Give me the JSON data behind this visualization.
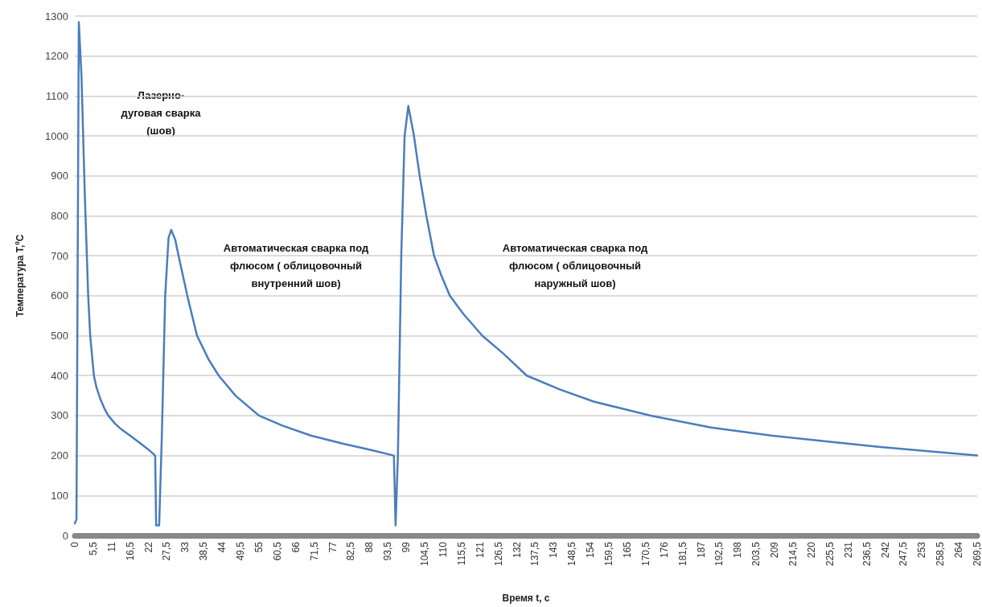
{
  "chart_data": {
    "type": "line",
    "xlabel": "Время t, с",
    "ylabel": "Температура Т,ºС",
    "series": [
      {
        "color": "#4a7ebb",
        "x": [
          0,
          0.5,
          1.2,
          2,
          3,
          4,
          4.6,
          5.7,
          6.5,
          7.7,
          9,
          10,
          12,
          14,
          17.3,
          20,
          22,
          24,
          24.3,
          25.2,
          26,
          27,
          28,
          28.8,
          30,
          31,
          32.3,
          33.6,
          36.5,
          40,
          43,
          48,
          55,
          62,
          70.5,
          80,
          88,
          95.3,
          95.8,
          96.5,
          97.5,
          98.5,
          99.6,
          101.3,
          103,
          105,
          107.3,
          109.5,
          112,
          116,
          121.7,
          128,
          135,
          145,
          155,
          172,
          190,
          208,
          225,
          240,
          255,
          269.5
        ],
        "values": [
          30,
          40,
          1285,
          1150,
          850,
          600,
          500,
          400,
          370,
          340,
          315,
          300,
          280,
          265,
          245,
          228,
          215,
          200,
          25,
          25,
          250,
          600,
          745,
          765,
          740,
          700,
          650,
          600,
          500,
          440,
          400,
          350,
          300,
          275,
          250,
          230,
          215,
          200,
          25,
          200,
          700,
          1000,
          1075,
          1000,
          900,
          800,
          700,
          650,
          600,
          555,
          500,
          455,
          400,
          365,
          335,
          300,
          270,
          250,
          235,
          222,
          211,
          200
        ]
      }
    ],
    "xlim": [
      0,
      269.5
    ],
    "xticks": [
      0,
      {
        "value": 5.5,
        "label": "5,5"
      },
      11,
      {
        "value": 16.5,
        "label": "16,5"
      },
      22,
      {
        "value": 27.5,
        "label": "27,5"
      },
      33,
      {
        "value": 38.5,
        "label": "38,5"
      },
      44,
      {
        "value": 49.5,
        "label": "49,5"
      },
      55,
      {
        "value": 60.5,
        "label": "60,5"
      },
      66,
      {
        "value": 71.5,
        "label": "71,5"
      },
      77,
      {
        "value": 82.5,
        "label": "82,5"
      },
      88,
      {
        "value": 93.5,
        "label": "93,5"
      },
      99,
      {
        "value": 104.5,
        "label": "104,5"
      },
      110,
      {
        "value": 115.5,
        "label": "115,5"
      },
      121,
      {
        "value": 126.5,
        "label": "126,5"
      },
      132,
      {
        "value": 137.5,
        "label": "137,5"
      },
      143,
      {
        "value": 148.5,
        "label": "148,5"
      },
      154,
      {
        "value": 159.5,
        "label": "159,5"
      },
      165,
      {
        "value": 170.5,
        "label": "170,5"
      },
      176,
      {
        "value": 181.5,
        "label": "181,5"
      },
      187,
      {
        "value": 192.5,
        "label": "192,5"
      },
      198,
      {
        "value": 203.5,
        "label": "203,5"
      },
      209,
      {
        "value": 214.5,
        "label": "214,5"
      },
      220,
      {
        "value": 225.5,
        "label": "225,5"
      },
      231,
      {
        "value": 236.5,
        "label": "236,5"
      },
      242,
      {
        "value": 247.5,
        "label": "247,5"
      },
      253,
      {
        "value": 258.5,
        "label": "258,5"
      },
      264,
      {
        "value": 269.5,
        "label": "269,5"
      }
    ],
    "ylim": [
      0,
      1300
    ],
    "yticks": [
      0,
      100,
      200,
      300,
      400,
      500,
      600,
      700,
      800,
      900,
      1000,
      1100,
      1200,
      1300
    ],
    "grid": "y",
    "marker": "none",
    "line_style": "solid",
    "annotations": [
      "Лазерно-\nдуговая сварка\n(шов)",
      "Автоматическая сварка под\nфлюсом ( облицовочный\nвнутренний шов)",
      "Автоматическая сварка под\nфлюсом ( облицовочный\nнаружный шов)"
    ]
  }
}
